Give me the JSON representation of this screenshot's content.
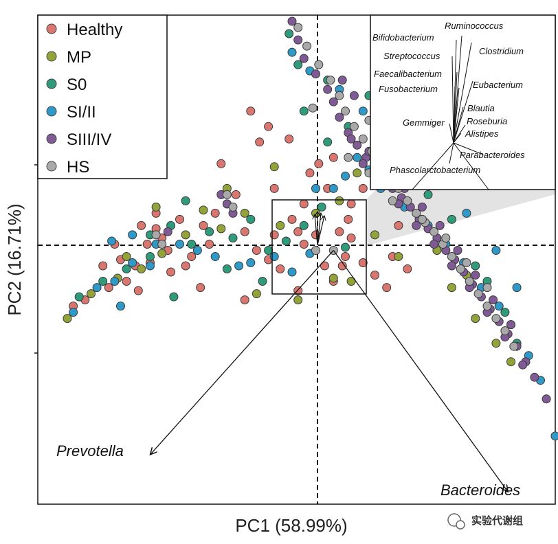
{
  "chart_data": {
    "type": "scatter",
    "xlabel": "PC1 (58.99%)",
    "ylabel": "PC2 (16.71%)",
    "xlim": [
      -1.0,
      0.75
    ],
    "ylim": [
      -0.82,
      0.76
    ],
    "reference_lines": {
      "x": 0,
      "y": 0
    },
    "legend": {
      "placement": "top-left",
      "entries": [
        {
          "name": "Healthy",
          "color": "#d9766f"
        },
        {
          "name": "MP",
          "color": "#94a23a"
        },
        {
          "name": "S0",
          "color": "#2f9b7a"
        },
        {
          "name": "SI/II",
          "color": "#2f99c8"
        },
        {
          "name": "SIII/IV",
          "color": "#7f5a94"
        },
        {
          "name": "HS",
          "color": "#a9a9a9"
        }
      ]
    },
    "series": [
      {
        "name": "Healthy",
        "color": "#d9766f",
        "points": [
          [
            -0.88,
            -0.18
          ],
          [
            -0.84,
            -0.16
          ],
          [
            -0.76,
            -0.12
          ],
          [
            -0.7,
            -0.1
          ],
          [
            -0.67,
            -0.05
          ],
          [
            -0.63,
            0.02
          ],
          [
            -0.6,
            0.07
          ],
          [
            -0.56,
            0.0
          ],
          [
            -0.52,
            0.1
          ],
          [
            -0.48,
            -0.02
          ],
          [
            -0.44,
            0.08
          ],
          [
            -0.4,
            0.12
          ],
          [
            -0.36,
            0.15
          ],
          [
            -0.33,
            0.18
          ],
          [
            -0.3,
            0.06
          ],
          [
            -0.26,
            0.0
          ],
          [
            -0.22,
            -0.03
          ],
          [
            -0.18,
            -0.06
          ],
          [
            -0.14,
            0.1
          ],
          [
            -0.1,
            0.15
          ],
          [
            -0.06,
            0.05
          ],
          [
            -0.03,
            -0.05
          ],
          [
            0.0,
            -0.1
          ],
          [
            0.03,
            -0.05
          ],
          [
            0.06,
            0.04
          ],
          [
            0.1,
            -0.04
          ],
          [
            0.14,
            -0.08
          ],
          [
            0.18,
            -0.12
          ],
          [
            -0.12,
            -0.13
          ],
          [
            -0.3,
            -0.16
          ],
          [
            -0.45,
            -0.12
          ],
          [
            -0.38,
            0.28
          ],
          [
            -0.25,
            0.35
          ],
          [
            -0.2,
            0.2
          ],
          [
            -0.15,
            0.36
          ],
          [
            -0.08,
            0.25
          ],
          [
            -0.05,
            0.28
          ],
          [
            -0.55,
            -0.07
          ],
          [
            -0.66,
            -0.13
          ],
          [
            -0.62,
            -0.04
          ],
          [
            -0.72,
            -0.03
          ],
          [
            -0.58,
            0.04
          ],
          [
            -0.5,
            -0.05
          ],
          [
            -0.42,
            0.02
          ],
          [
            -0.2,
            0.05
          ],
          [
            -0.12,
            0.06
          ],
          [
            -0.1,
            0.02
          ],
          [
            0.05,
            0.1
          ],
          [
            0.02,
            0.06
          ],
          [
            0.2,
            -0.02
          ],
          [
            0.25,
            -0.06
          ],
          [
            0.22,
            0.08
          ],
          [
            0.1,
            0.2
          ],
          [
            0.06,
            0.15
          ],
          [
            0.04,
            -0.02
          ],
          [
            -0.02,
            0.2
          ],
          [
            0.0,
            0.3
          ],
          [
            -0.28,
            0.45
          ],
          [
            -0.22,
            0.4
          ],
          [
            -0.6,
            0.12
          ],
          [
            -0.65,
            0.08
          ],
          [
            -0.78,
            -0.05
          ],
          [
            -0.74,
            0.02
          ]
        ]
      },
      {
        "name": "MP",
        "color": "#94a23a",
        "points": [
          [
            -0.9,
            -0.22
          ],
          [
            -0.82,
            -0.14
          ],
          [
            -0.73,
            -0.09
          ],
          [
            -0.65,
            -0.06
          ],
          [
            -0.58,
            -0.01
          ],
          [
            -0.5,
            0.05
          ],
          [
            -0.44,
            0.13
          ],
          [
            -0.38,
            0.07
          ],
          [
            -0.3,
            0.12
          ],
          [
            -0.18,
            0.08
          ],
          [
            -0.06,
            0.12
          ],
          [
            0.02,
            0.16
          ],
          [
            -0.12,
            -0.16
          ],
          [
            0.0,
            -0.09
          ],
          [
            -0.26,
            -0.14
          ],
          [
            0.06,
            -0.1
          ],
          [
            -0.6,
            0.14
          ],
          [
            -0.7,
            -0.02
          ],
          [
            -0.36,
            0.2
          ],
          [
            -0.2,
            0.27
          ],
          [
            0.14,
            0.05
          ],
          [
            0.22,
            -0.02
          ],
          [
            0.3,
            0.1
          ],
          [
            0.4,
            -0.12
          ],
          [
            0.48,
            -0.22
          ],
          [
            0.55,
            -0.3
          ],
          [
            0.6,
            -0.36
          ],
          [
            0.08,
            0.25
          ],
          [
            0.2,
            0.3
          ],
          [
            0.28,
            0.22
          ],
          [
            0.35,
            0.0
          ],
          [
            0.45,
            -0.08
          ]
        ]
      },
      {
        "name": "S0",
        "color": "#2f9b7a",
        "points": [
          [
            -0.86,
            -0.15
          ],
          [
            -0.78,
            -0.1
          ],
          [
            -0.7,
            -0.06
          ],
          [
            -0.62,
            -0.02
          ],
          [
            -0.55,
            0.08
          ],
          [
            -0.48,
            0.02
          ],
          [
            -0.42,
            0.06
          ],
          [
            -0.34,
            0.04
          ],
          [
            -0.28,
            0.1
          ],
          [
            -0.22,
            0.0
          ],
          [
            -0.16,
            0.03
          ],
          [
            -0.1,
            0.08
          ],
          [
            -0.04,
            0.14
          ],
          [
            0.04,
            0.01
          ],
          [
            -0.54,
            -0.15
          ],
          [
            -0.36,
            -0.06
          ],
          [
            -0.24,
            -0.1
          ],
          [
            -0.62,
            0.05
          ],
          [
            -0.5,
            0.16
          ],
          [
            0.05,
            0.4
          ],
          [
            -0.02,
            0.35
          ],
          [
            0.15,
            0.35
          ],
          [
            0.25,
            0.28
          ],
          [
            0.32,
            0.18
          ],
          [
            0.4,
            0.1
          ],
          [
            0.48,
            -0.05
          ],
          [
            0.52,
            -0.1
          ],
          [
            0.58,
            -0.2
          ],
          [
            0.62,
            -0.3
          ],
          [
            0.2,
            0.4
          ],
          [
            0.12,
            0.5
          ],
          [
            -0.02,
            0.55
          ],
          [
            -0.12,
            0.6
          ],
          [
            -0.15,
            0.7
          ],
          [
            -0.1,
            0.45
          ],
          [
            0.3,
            0.25
          ]
        ]
      },
      {
        "name": "SI/II",
        "color": "#2f99c8",
        "points": [
          [
            -0.88,
            -0.2
          ],
          [
            -0.8,
            -0.12
          ],
          [
            -0.74,
            -0.1
          ],
          [
            -0.68,
            -0.04
          ],
          [
            -0.6,
            0.02
          ],
          [
            -0.52,
            0.02
          ],
          [
            -0.46,
            0.0
          ],
          [
            -0.4,
            -0.02
          ],
          [
            -0.32,
            -0.05
          ],
          [
            -0.28,
            -0.04
          ],
          [
            -0.2,
            -0.02
          ],
          [
            -0.14,
            -0.07
          ],
          [
            -0.08,
            -0.01
          ],
          [
            -0.06,
            0.2
          ],
          [
            -0.68,
            0.05
          ],
          [
            -0.75,
            0.03
          ],
          [
            -0.72,
            -0.18
          ],
          [
            -0.62,
            -0.05
          ],
          [
            0.0,
            0.2
          ],
          [
            0.04,
            0.24
          ],
          [
            0.08,
            0.3
          ],
          [
            0.12,
            0.26
          ],
          [
            0.16,
            0.2
          ],
          [
            0.24,
            0.14
          ],
          [
            0.32,
            0.08
          ],
          [
            0.38,
            0.02
          ],
          [
            0.44,
            -0.04
          ],
          [
            0.5,
            -0.12
          ],
          [
            0.56,
            -0.18
          ],
          [
            0.6,
            -0.24
          ],
          [
            0.66,
            -0.34
          ],
          [
            0.7,
            -0.42
          ],
          [
            0.75,
            -0.6
          ],
          [
            0.1,
            0.45
          ],
          [
            0.18,
            0.38
          ],
          [
            0.26,
            0.3
          ],
          [
            0.02,
            0.52
          ],
          [
            -0.08,
            0.58
          ],
          [
            -0.14,
            0.64
          ],
          [
            0.35,
            0.22
          ],
          [
            0.45,
            0.12
          ],
          [
            0.55,
            0.0
          ],
          [
            0.62,
            -0.12
          ]
        ]
      },
      {
        "name": "SIII/IV",
        "color": "#7f5a94",
        "points": [
          [
            -0.14,
            0.74
          ],
          [
            -0.12,
            0.68
          ],
          [
            -0.1,
            0.62
          ],
          [
            -0.06,
            0.57
          ],
          [
            -0.02,
            0.52
          ],
          [
            0.0,
            0.48
          ],
          [
            0.02,
            0.43
          ],
          [
            0.05,
            0.38
          ],
          [
            0.08,
            0.34
          ],
          [
            0.11,
            0.3
          ],
          [
            0.14,
            0.27
          ],
          [
            0.17,
            0.23
          ],
          [
            0.2,
            0.2
          ],
          [
            0.23,
            0.17
          ],
          [
            0.26,
            0.14
          ],
          [
            0.29,
            0.1
          ],
          [
            0.32,
            0.07
          ],
          [
            0.35,
            0.04
          ],
          [
            0.38,
            0.0
          ],
          [
            0.41,
            -0.03
          ],
          [
            0.44,
            -0.07
          ],
          [
            0.47,
            -0.11
          ],
          [
            0.5,
            -0.15
          ],
          [
            0.53,
            -0.19
          ],
          [
            0.56,
            -0.23
          ],
          [
            0.59,
            -0.27
          ],
          [
            0.62,
            -0.31
          ],
          [
            0.65,
            -0.36
          ],
          [
            0.68,
            -0.41
          ],
          [
            0.72,
            -0.48
          ],
          [
            0.1,
            0.28
          ],
          [
            0.16,
            0.22
          ],
          [
            0.22,
            0.15
          ],
          [
            0.28,
            0.08
          ],
          [
            0.34,
            0.02
          ],
          [
            0.4,
            -0.05
          ],
          [
            0.46,
            -0.12
          ],
          [
            0.52,
            -0.2
          ],
          [
            0.58,
            -0.28
          ],
          [
            0.64,
            -0.37
          ],
          [
            0.06,
            0.36
          ],
          [
            0.12,
            0.32
          ],
          [
            0.18,
            0.26
          ],
          [
            0.24,
            0.2
          ],
          [
            0.3,
            0.14
          ],
          [
            0.36,
            0.08
          ],
          [
            0.42,
            0.0
          ],
          [
            0.48,
            -0.08
          ],
          [
            0.54,
            -0.16
          ],
          [
            0.6,
            -0.24
          ],
          [
            -0.38,
            0.18
          ],
          [
            -0.36,
            0.15
          ],
          [
            -0.34,
            0.12
          ],
          [
            -0.56,
            0.06
          ],
          [
            0.07,
            0.5
          ],
          [
            0.03,
            0.55
          ]
        ]
      },
      {
        "name": "HS",
        "color": "#a9a9a9",
        "points": [
          [
            -0.12,
            0.72
          ],
          [
            -0.09,
            0.66
          ],
          [
            -0.05,
            0.6
          ],
          [
            -0.01,
            0.55
          ],
          [
            0.02,
            0.5
          ],
          [
            0.04,
            0.45
          ],
          [
            0.07,
            0.4
          ],
          [
            0.1,
            0.36
          ],
          [
            0.13,
            0.32
          ],
          [
            0.16,
            0.28
          ],
          [
            0.19,
            0.24
          ],
          [
            0.22,
            0.2
          ],
          [
            0.25,
            0.16
          ],
          [
            0.28,
            0.12
          ],
          [
            0.31,
            0.09
          ],
          [
            0.34,
            0.06
          ],
          [
            0.37,
            0.02
          ],
          [
            0.4,
            -0.02
          ],
          [
            0.43,
            -0.06
          ],
          [
            0.46,
            -0.1
          ],
          [
            0.49,
            -0.14
          ],
          [
            0.52,
            -0.18
          ],
          [
            0.55,
            -0.22
          ],
          [
            0.58,
            -0.26
          ],
          [
            0.61,
            -0.31
          ],
          [
            -0.6,
            0.05
          ],
          [
            -0.58,
            0.02
          ],
          [
            -0.36,
            0.18
          ],
          [
            -0.34,
            0.14
          ],
          [
            -0.06,
            0.0
          ],
          [
            0.0,
            0.0
          ],
          [
            0.05,
            0.3
          ],
          [
            0.12,
            0.25
          ],
          [
            0.2,
            0.16
          ],
          [
            0.3,
            0.1
          ],
          [
            0.38,
            0.04
          ],
          [
            0.45,
            -0.04
          ],
          [
            0.52,
            -0.12
          ],
          [
            -0.07,
            0.46
          ],
          [
            0.12,
            0.42
          ]
        ]
      }
    ],
    "biplot": {
      "origin": [
        0.0,
        0.0
      ],
      "taxa": [
        {
          "name": "Prevotella",
          "end": [
            -0.62,
            -0.66
          ]
        },
        {
          "name": "Bacteroides",
          "end": [
            0.59,
            -0.78
          ]
        }
      ],
      "zoom_box": {
        "x": [
          -0.15,
          0.17
        ],
        "y": [
          -0.16,
          0.17
        ]
      }
    },
    "inset": {
      "description": "Enlarged view of taxon loadings near origin",
      "labels": [
        "Ruminococcus",
        "Bifidobacterium",
        "Clostridium",
        "Streptococcus",
        "Faecalibacterium",
        "Fusobacterium",
        "Eubacterium",
        "Blautia",
        "Gemmiger",
        "Roseburia",
        "Alistipes",
        "Parabacteroides",
        "Phascolarctobacterium"
      ]
    }
  },
  "watermark": {
    "text": "实验代谢组"
  }
}
